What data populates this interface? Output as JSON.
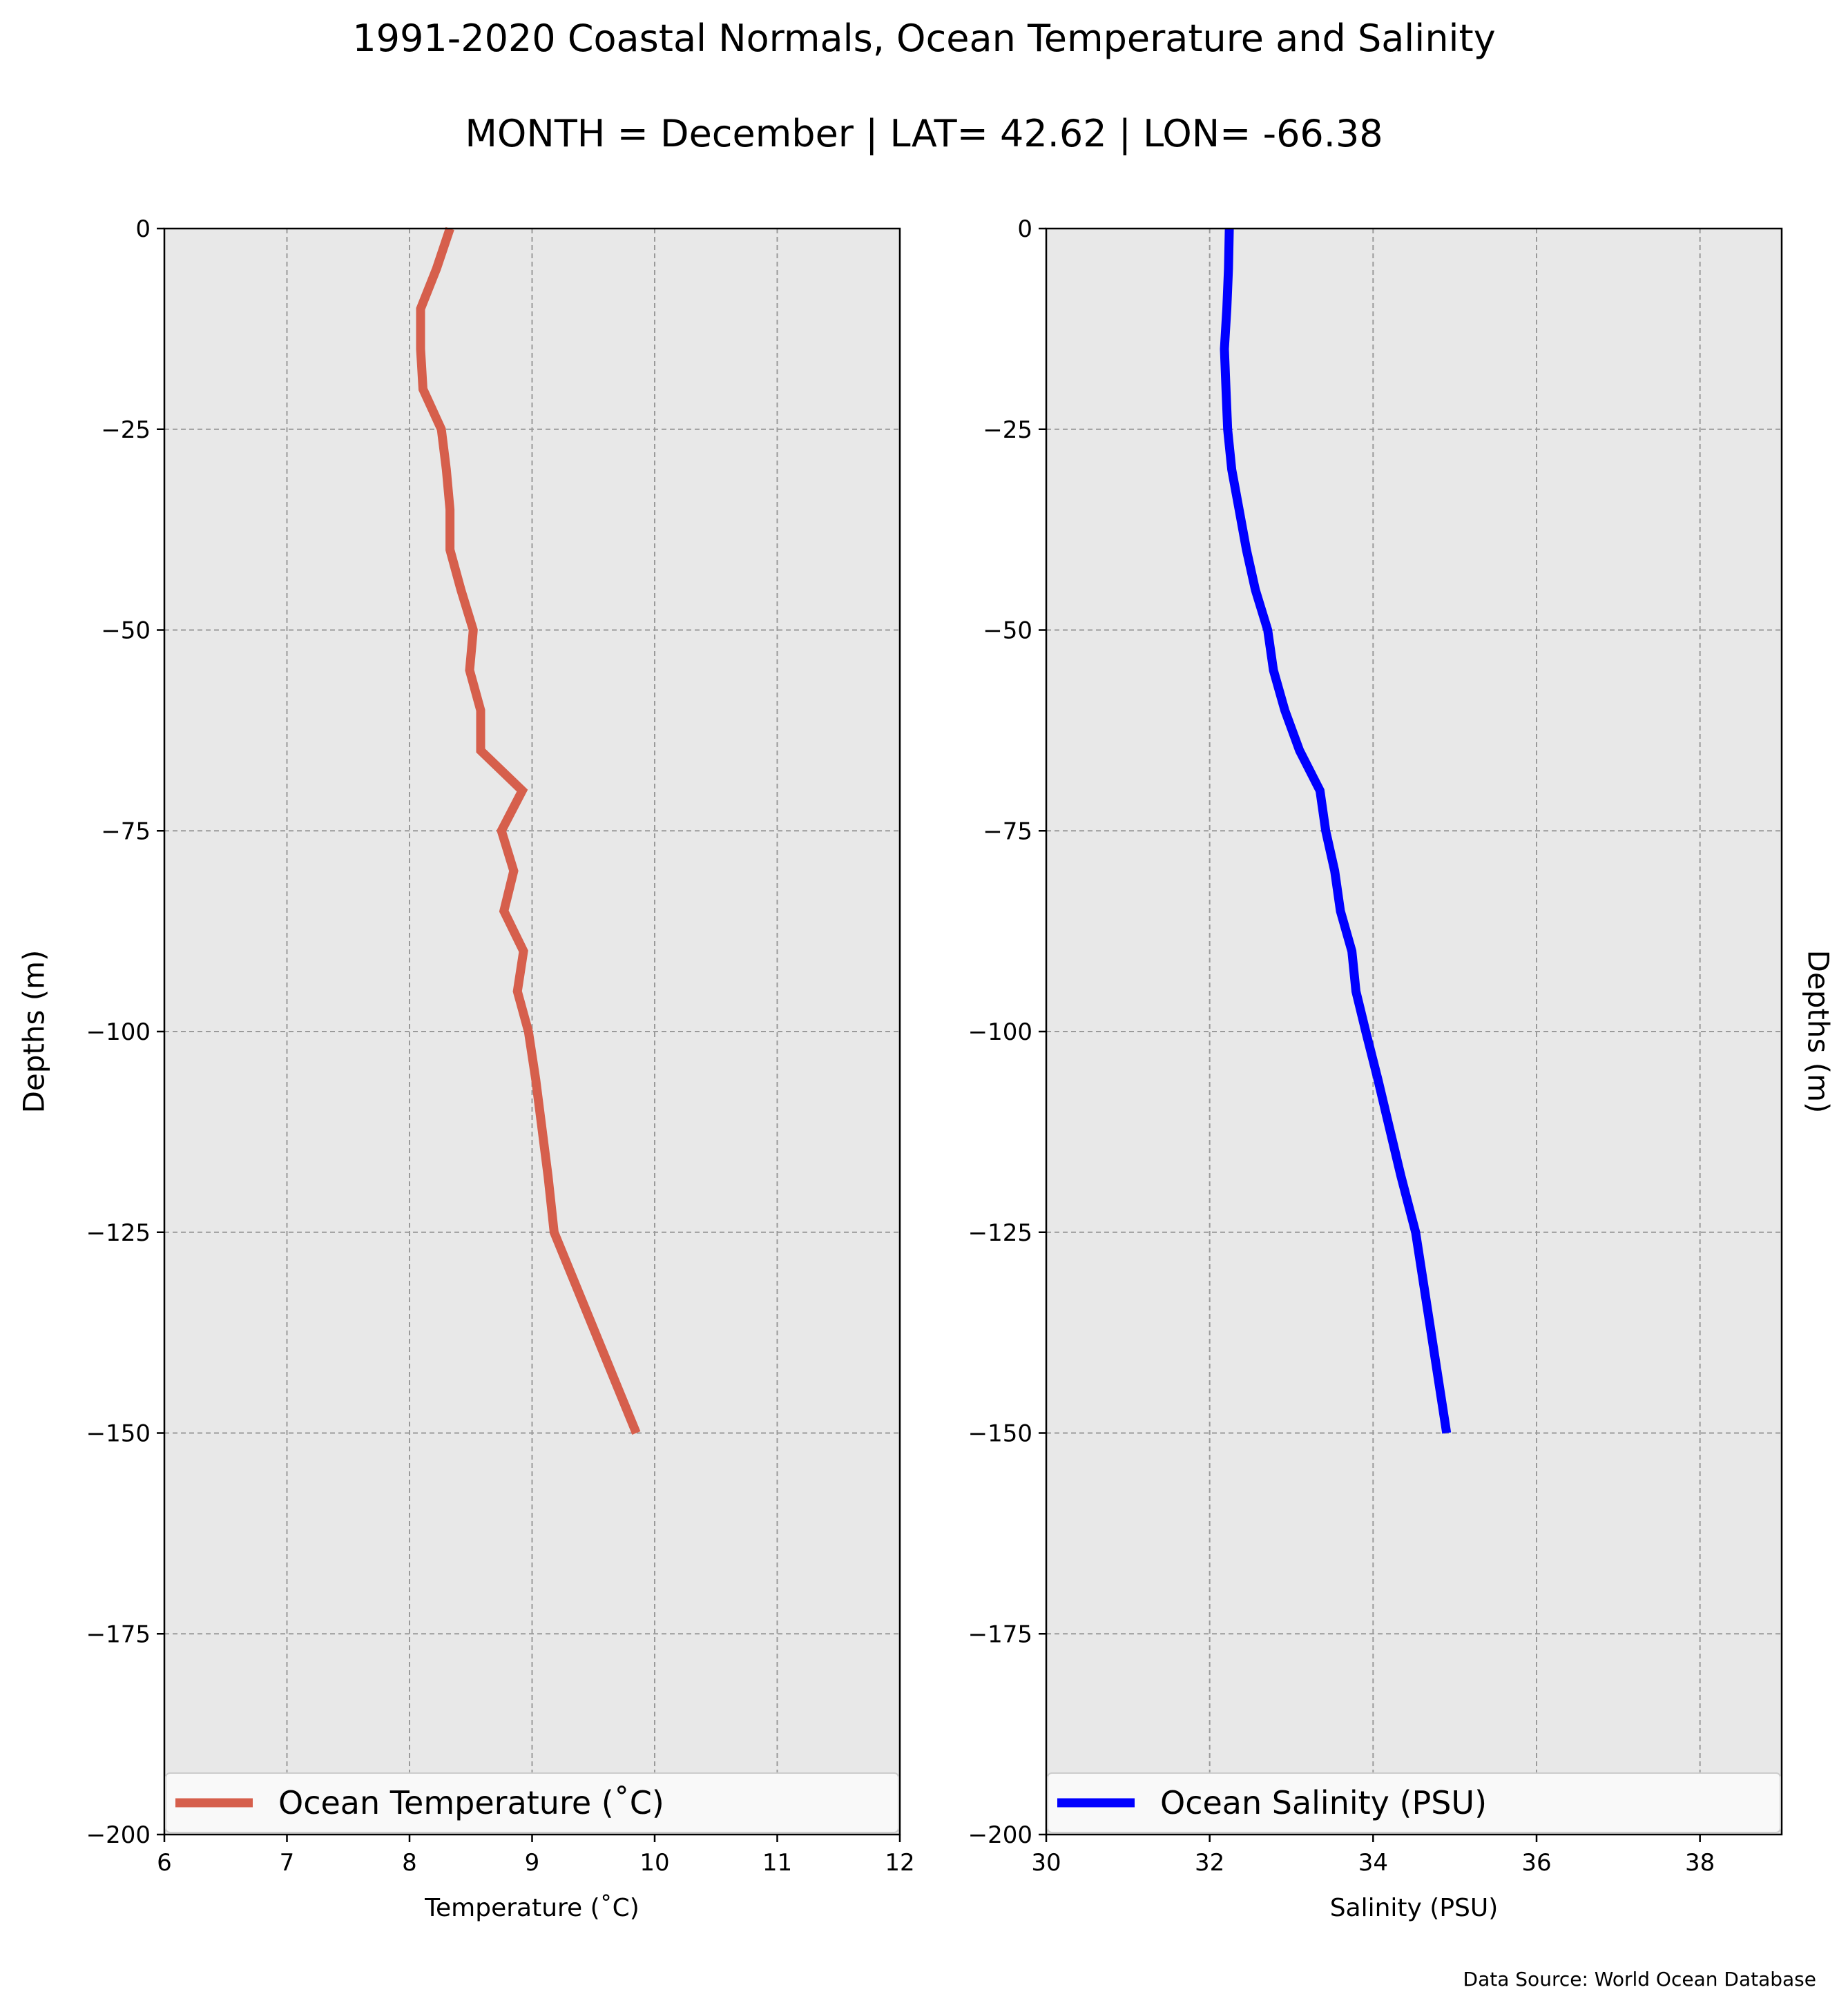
{
  "title_line1": "1991-2020 Coastal Normals, Ocean Temperature and Salinity",
  "title_line2": "MONTH = December | LAT= 42.62 | LON= -66.38",
  "source": "Data Source: World Ocean Database",
  "chart_data": [
    {
      "type": "line",
      "xlabel": "Temperature ($^\\circ$C)",
      "xlabel_display": "Temperature (˚C)",
      "ylabel": "Depths (m)",
      "xlim": [
        6,
        12
      ],
      "ylim": [
        -200,
        0
      ],
      "xticks": [
        6,
        7,
        8,
        9,
        10,
        11,
        12
      ],
      "yticks": [
        0,
        -25,
        -50,
        -75,
        -100,
        -125,
        -150,
        -175,
        -200
      ],
      "grid": true,
      "legend_placement": "lower-center",
      "series": [
        {
          "name": "Ocean Temperature (˚C)",
          "color": "#d65f4c",
          "x": [
            8.33,
            8.22,
            8.09,
            8.09,
            8.11,
            8.26,
            8.3,
            8.33,
            8.33,
            8.42,
            8.52,
            8.49,
            8.58,
            8.58,
            8.92,
            8.75,
            8.85,
            8.77,
            8.93,
            8.88,
            8.97,
            9.03,
            9.08,
            9.13,
            9.18,
            9.85
          ],
          "y": [
            0,
            -5,
            -10,
            -15,
            -20,
            -25,
            -30,
            -35,
            -40,
            -45,
            -50,
            -55,
            -60,
            -65,
            -70,
            -75,
            -80,
            -85,
            -90,
            -95,
            -100,
            -106,
            -112,
            -118,
            -125,
            -150
          ]
        }
      ]
    },
    {
      "type": "line",
      "xlabel": "Salinity (PSU)",
      "ylabel": "Depths (m)",
      "xlim": [
        30,
        39
      ],
      "ylim": [
        -200,
        0
      ],
      "xticks": [
        30,
        32,
        34,
        36,
        38
      ],
      "yticks": [
        0,
        -25,
        -50,
        -75,
        -100,
        -125,
        -150,
        -175,
        -200
      ],
      "grid": true,
      "legend_placement": "lower-center",
      "series": [
        {
          "name": "Ocean Salinity (PSU)",
          "color": "#0000ff",
          "x": [
            32.24,
            32.23,
            32.21,
            32.18,
            32.2,
            32.22,
            32.27,
            32.36,
            32.45,
            32.56,
            32.71,
            32.78,
            32.92,
            33.1,
            33.35,
            33.42,
            33.53,
            33.6,
            33.74,
            33.79,
            33.91,
            34.06,
            34.2,
            34.34,
            34.52,
            34.9
          ],
          "y": [
            0,
            -5,
            -10,
            -15,
            -20,
            -25,
            -30,
            -35,
            -40,
            -45,
            -50,
            -55,
            -60,
            -65,
            -70,
            -75,
            -80,
            -85,
            -90,
            -95,
            -100,
            -106,
            -112,
            -118,
            -125,
            -150
          ]
        }
      ]
    }
  ]
}
